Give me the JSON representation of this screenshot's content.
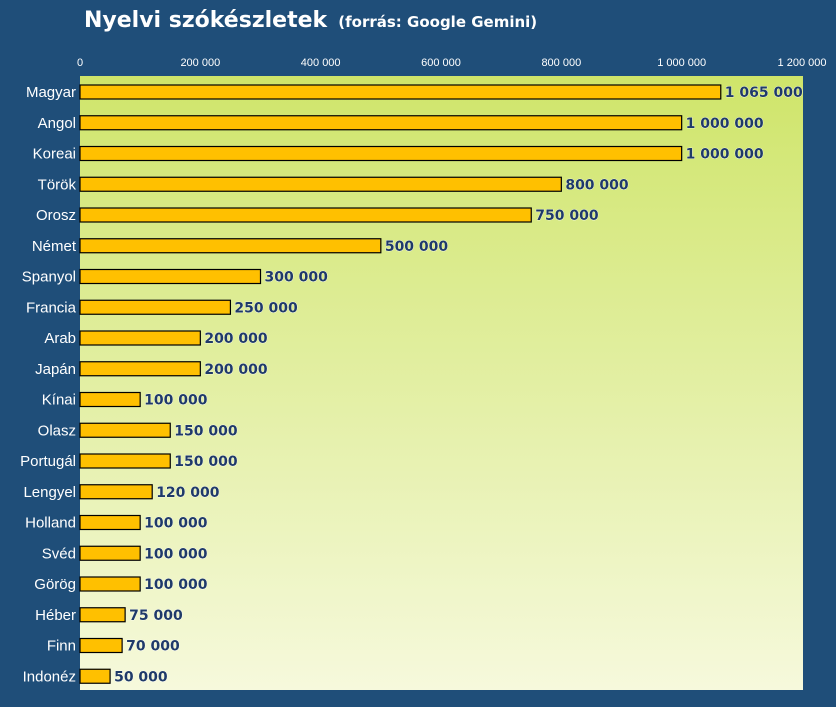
{
  "title": "Nyelvi szókészletek",
  "subtitle": "(forrás: Google Gemini)",
  "colors": {
    "background": "#1f4e79",
    "plot_gradient_top": "#cfe56a",
    "plot_gradient_bottom": "#f6f9dc",
    "bar_fill": "#ffc000",
    "bar_stroke": "#000000",
    "data_label": "#1f3a68",
    "axis_text": "#ffffff"
  },
  "chart_data": {
    "type": "bar",
    "orientation": "horizontal",
    "title": "Nyelvi szókészletek",
    "subtitle": "(forrás: Google Gemini)",
    "xlim": [
      0,
      1200000
    ],
    "xticks": [
      "0",
      "200 000",
      "400 000",
      "600 000",
      "800 000",
      "1 000 000",
      "1 200 000"
    ],
    "x_axis_position": "top",
    "grid": false,
    "categories": [
      "Magyar",
      "Angol",
      "Koreai",
      "Török",
      "Orosz",
      "Német",
      "Spanyol",
      "Francia",
      "Arab",
      "Japán",
      "Kínai",
      "Olasz",
      "Portugál",
      "Lengyel",
      "Holland",
      "Svéd",
      "Görög",
      "Héber",
      "Finn",
      "Indonéz"
    ],
    "values": [
      1065000,
      1000000,
      1000000,
      800000,
      750000,
      500000,
      300000,
      250000,
      200000,
      200000,
      100000,
      150000,
      150000,
      120000,
      100000,
      100000,
      100000,
      75000,
      70000,
      50000
    ],
    "data_labels": [
      "1 065 000",
      "1 000 000",
      "1 000 000",
      "800 000",
      "750 000",
      "500 000",
      "300 000",
      "250 000",
      "200 000",
      "200 000",
      "100 000",
      "150 000",
      "150 000",
      "120 000",
      "100 000",
      "100 000",
      "100 000",
      "75 000",
      "70 000",
      "50 000"
    ]
  }
}
